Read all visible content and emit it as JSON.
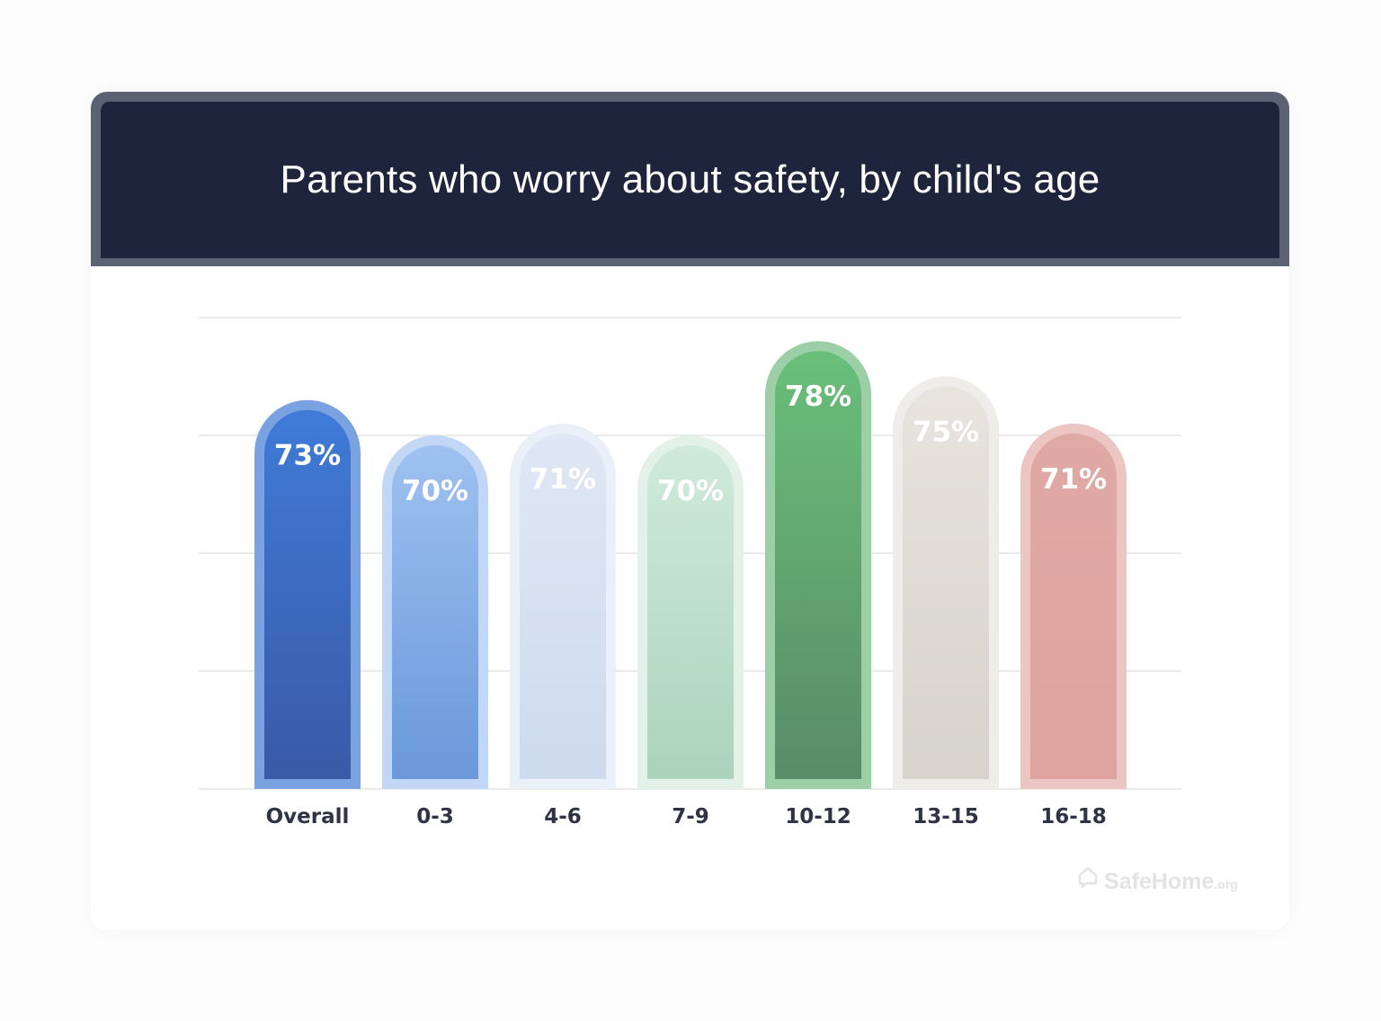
{
  "chart_data": {
    "type": "bar",
    "title": "Parents who worry about safety, by child's age",
    "xlabel": "",
    "ylabel": "",
    "categories": [
      "Overall",
      "0-3",
      "4-6",
      "7-9",
      "10-12",
      "13-15",
      "16-18"
    ],
    "values": [
      73,
      70,
      71,
      70,
      78,
      75,
      71
    ],
    "data_labels": [
      "73%",
      "70%",
      "71%",
      "70%",
      "78%",
      "75%",
      "71%"
    ],
    "ylim": [
      40,
      80
    ],
    "grid": true,
    "colors": [
      {
        "top": "#3f7bd8",
        "bottom": "#3a5aa6",
        "outer": "#7ba2e0"
      },
      {
        "top": "#9ec1f0",
        "bottom": "#6a98da",
        "outer": "#c2d7f6"
      },
      {
        "top": "#dfe7f4",
        "bottom": "#cedbee",
        "outer": "#eaf0f8"
      },
      {
        "top": "#d0eada",
        "bottom": "#abd3bc",
        "outer": "#e3f2e8"
      },
      {
        "top": "#69bf7a",
        "bottom": "#5a8b67",
        "outer": "#9ccfa6"
      },
      {
        "top": "#e7e4de",
        "bottom": "#d5d3cc",
        "outer": "#efede9"
      },
      {
        "top": "#e0a9a5",
        "bottom": "#dea39f",
        "outer": "#ebc6c3"
      }
    ]
  },
  "logo": {
    "main": "SafeHome",
    "tld": ".org"
  }
}
